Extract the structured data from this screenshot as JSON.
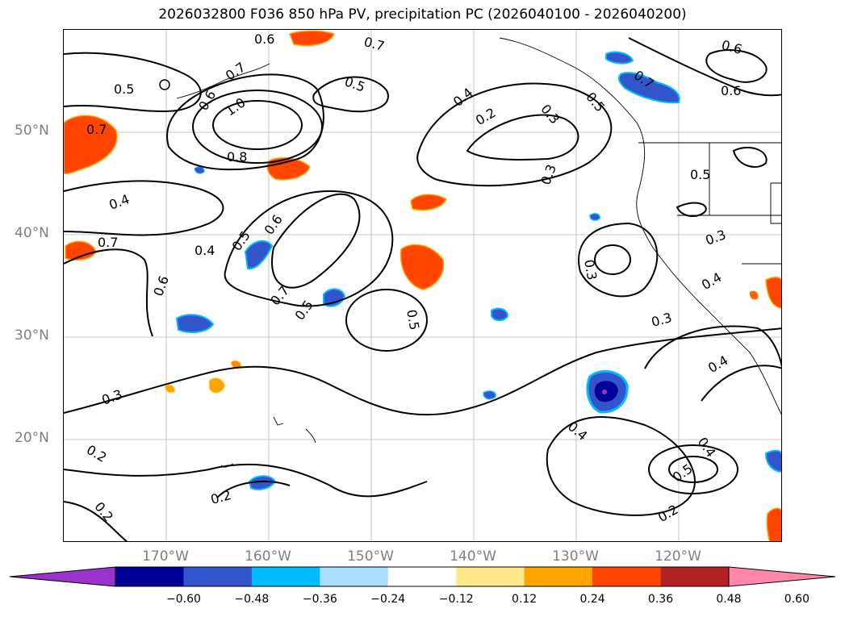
{
  "title": "2026032800 F036 850 hPa PV, precipitation PC (2026040100 - 2026040200)",
  "lat_labels": [
    "50°N",
    "40°N",
    "30°N",
    "20°N"
  ],
  "lon_labels": [
    "170°W",
    "160°W",
    "150°W",
    "140°W",
    "130°W",
    "120°W"
  ],
  "contour_labels": [
    "0.5",
    "0.7",
    "0.6",
    "0.7",
    "1.0",
    "0.8",
    "0.6",
    "0.7",
    "0.5",
    "0.4",
    "0.2",
    "0.3",
    "0.6",
    "0.7",
    "0.6",
    "0.5",
    "0.4",
    "0.7",
    "0.4",
    "0.5",
    "0.6",
    "0.7",
    "0.5",
    "0.5",
    "0.3",
    "0.3",
    "0.3",
    "0.4",
    "0.4",
    "0.3",
    "0.2",
    "0.2",
    "0.2",
    "0.4",
    "0.5",
    "0.4",
    "0.2",
    "0.6",
    "0.5",
    "0.3"
  ],
  "colorbar": {
    "colors": [
      "#9933cc",
      "#000099",
      "#3355cc",
      "#00bbff",
      "#aaddff",
      "#ffffff",
      "#ffe88a",
      "#ffa500",
      "#ff4500",
      "#b22222",
      "#ff88aa"
    ],
    "ticks": [
      "−0.60",
      "−0.48",
      "−0.36",
      "−0.24",
      "−0.12",
      "0.12",
      "0.24",
      "0.36",
      "0.48",
      "0.60"
    ]
  }
}
